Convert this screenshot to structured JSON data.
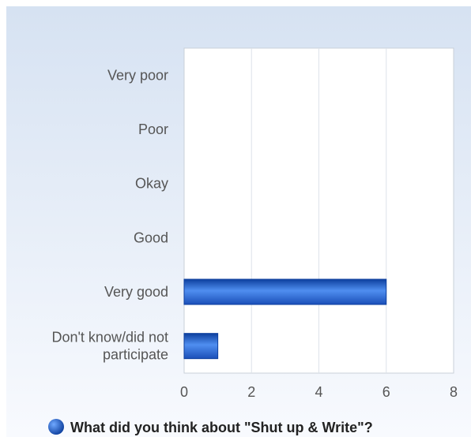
{
  "chart_data": {
    "type": "bar",
    "orientation": "horizontal",
    "categories": [
      "Very poor",
      "Poor",
      "Okay",
      "Good",
      "Very good",
      "Don't know/did not participate"
    ],
    "series": [
      {
        "name": "What did you think about \"Shut up & Write\"?",
        "values": [
          0,
          0,
          0,
          0,
          6,
          1
        ]
      }
    ],
    "xlim": [
      0,
      8
    ],
    "xticks": [
      0,
      2,
      4,
      6,
      8
    ],
    "grid": true,
    "legend_position": "bottom",
    "colors": {
      "bar": "#2f6fd8",
      "bar_dark": "#0d3f9e",
      "grid": "#dde3ea",
      "axis": "#c9d0d8"
    }
  }
}
